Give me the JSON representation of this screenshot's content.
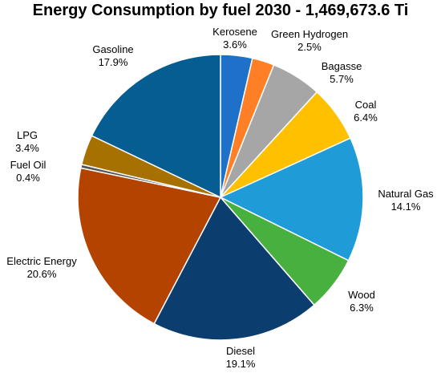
{
  "chart_data": {
    "type": "pie",
    "title": "Energy Consumption by fuel 2030 - 1,469,673.6 Ti",
    "start_angle_deg": 0,
    "direction": "clockwise",
    "slices": [
      {
        "name": "Kerosene",
        "value": 3.6,
        "label": "3.6%",
        "color": "#1f70c8"
      },
      {
        "name": "Green Hydrogen",
        "value": 2.5,
        "label": "2.5%",
        "color": "#ff7f27"
      },
      {
        "name": "Bagasse",
        "value": 5.7,
        "label": "5.7%",
        "color": "#a6a6a6"
      },
      {
        "name": "Coal",
        "value": 6.4,
        "label": "6.4%",
        "color": "#ffc000"
      },
      {
        "name": "Natural Gas",
        "value": 14.1,
        "label": "14.1%",
        "color": "#1f9bd8"
      },
      {
        "name": "Wood",
        "value": 6.3,
        "label": "6.3%",
        "color": "#47b03f"
      },
      {
        "name": "Diesel",
        "value": 19.1,
        "label": "19.1%",
        "color": "#0b3d6f"
      },
      {
        "name": "Electric Energy",
        "value": 20.6,
        "label": "20.6%",
        "color": "#b54300"
      },
      {
        "name": "Fuel Oil",
        "value": 0.4,
        "label": "0.4%",
        "color": "#555555"
      },
      {
        "name": "LPG",
        "value": 3.4,
        "label": "3.4%",
        "color": "#a67100"
      },
      {
        "name": "Gasoline",
        "value": 17.9,
        "label": "17.9%",
        "color": "#065d91"
      }
    ]
  }
}
